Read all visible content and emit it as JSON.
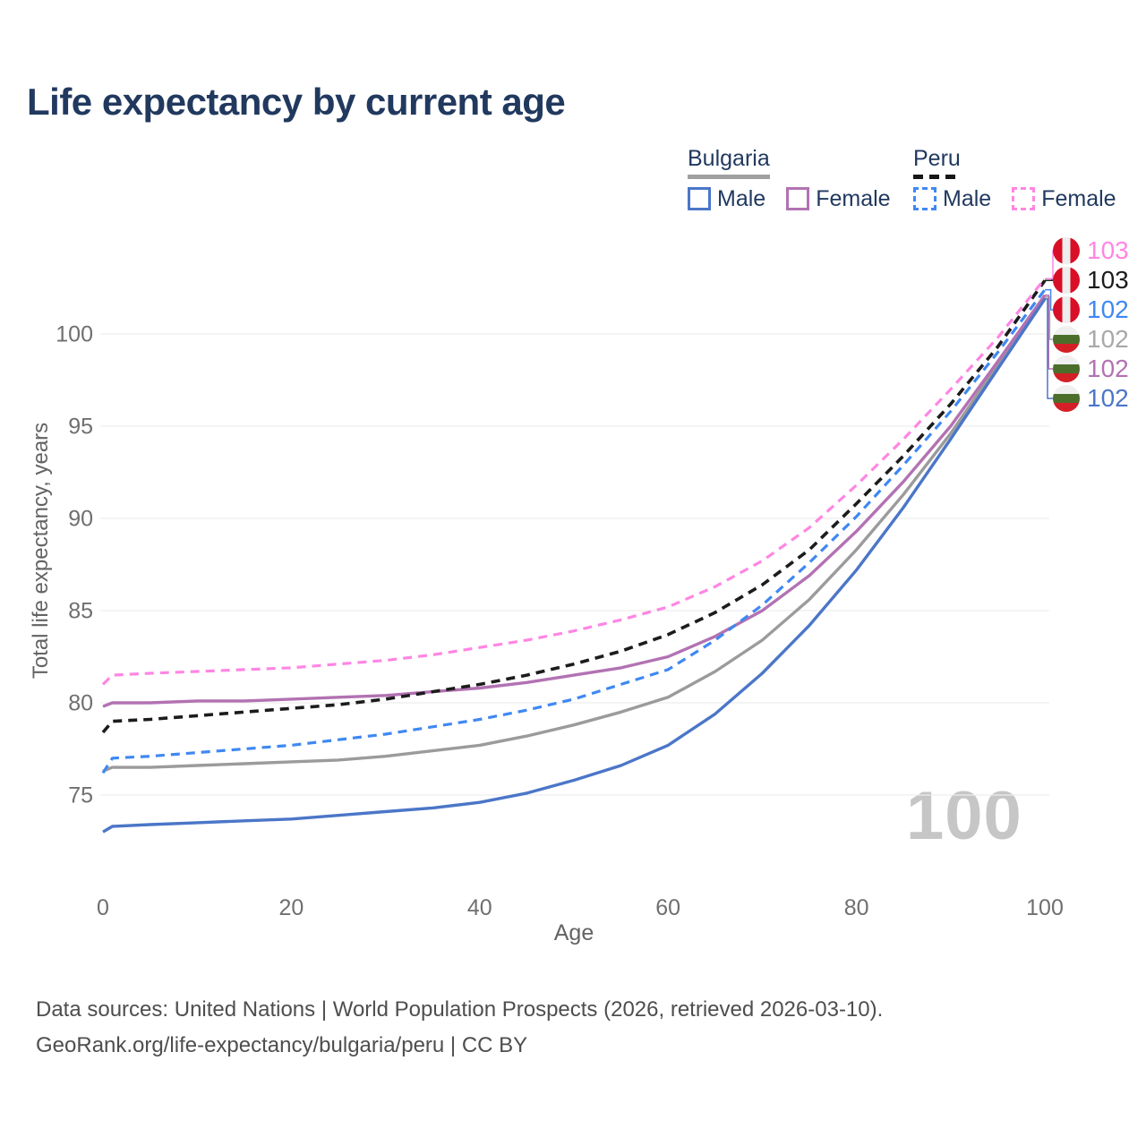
{
  "title": "Life expectancy by current age",
  "legend": {
    "groups": [
      {
        "country": "Bulgaria",
        "line_style": "solid",
        "underline_color": "#a0a0a0",
        "items": [
          {
            "label": "Male",
            "color": "#4b76c8"
          },
          {
            "label": "Female",
            "color": "#b272b2"
          }
        ]
      },
      {
        "country": "Peru",
        "line_style": "dashed",
        "underline_color": "#161616",
        "items": [
          {
            "label": "Male",
            "color": "#3f88f2"
          },
          {
            "label": "Female",
            "color": "#ff86e3"
          }
        ]
      }
    ]
  },
  "y_axis": {
    "title": "Total life expectancy, years",
    "ticks": [
      75,
      80,
      85,
      90,
      95,
      100
    ]
  },
  "x_axis": {
    "title": "Age",
    "ticks": [
      0,
      20,
      40,
      60,
      80,
      100
    ]
  },
  "watermark": "100",
  "end_labels": [
    {
      "value": "103",
      "country": "Peru",
      "series": "Peru Female",
      "color": "#ff86e3",
      "flag": "peru"
    },
    {
      "value": "103",
      "country": "Peru",
      "series": "Peru",
      "color": "#1c1c1c",
      "flag": "peru"
    },
    {
      "value": "102",
      "country": "Peru",
      "series": "Peru Male",
      "color": "#3f88f2",
      "flag": "peru"
    },
    {
      "value": "102",
      "country": "Bulgaria",
      "series": "Bulgaria",
      "color": "#a8a8a8",
      "flag": "bulgaria"
    },
    {
      "value": "102",
      "country": "Bulgaria",
      "series": "Bulgaria Female",
      "color": "#b272b2",
      "flag": "bulgaria"
    },
    {
      "value": "102",
      "country": "Bulgaria",
      "series": "Bulgaria Male",
      "color": "#4b76c8",
      "flag": "bulgaria"
    }
  ],
  "chart_data": {
    "type": "line",
    "title": "Life expectancy by current age",
    "xlabel": "Age",
    "ylabel": "Total life expectancy, years",
    "xlim": [
      0,
      100
    ],
    "ylim": [
      72,
      104
    ],
    "grid": "horizontal",
    "legend_position": "top-right",
    "x": [
      0,
      1,
      5,
      10,
      15,
      20,
      25,
      30,
      35,
      40,
      45,
      50,
      55,
      60,
      65,
      70,
      75,
      80,
      85,
      90,
      95,
      100
    ],
    "series": [
      {
        "name": "Bulgaria",
        "color": "#9b9b9b",
        "dash": false,
        "values": [
          76.3,
          76.5,
          76.5,
          76.6,
          76.7,
          76.8,
          76.9,
          77.1,
          77.4,
          77.7,
          78.2,
          78.8,
          79.5,
          80.3,
          81.7,
          83.4,
          85.6,
          88.3,
          91.3,
          94.6,
          98.3,
          102.0
        ]
      },
      {
        "name": "Bulgaria Female",
        "color": "#b272b2",
        "dash": false,
        "values": [
          79.8,
          80.0,
          80.0,
          80.1,
          80.1,
          80.2,
          80.3,
          80.4,
          80.6,
          80.8,
          81.1,
          81.5,
          81.9,
          82.5,
          83.6,
          85.0,
          86.9,
          89.3,
          92.0,
          95.0,
          98.5,
          102.1
        ]
      },
      {
        "name": "Bulgaria Male",
        "color": "#4b76c8",
        "dash": false,
        "values": [
          73.0,
          73.3,
          73.4,
          73.5,
          73.6,
          73.7,
          73.9,
          74.1,
          74.3,
          74.6,
          75.1,
          75.8,
          76.6,
          77.7,
          79.4,
          81.6,
          84.2,
          87.2,
          90.6,
          94.3,
          98.1,
          101.9
        ]
      },
      {
        "name": "Peru",
        "color": "#1c1c1c",
        "dash": true,
        "values": [
          78.4,
          79.0,
          79.1,
          79.3,
          79.5,
          79.7,
          79.9,
          80.2,
          80.6,
          81.0,
          81.5,
          82.1,
          82.8,
          83.7,
          84.9,
          86.4,
          88.3,
          90.8,
          93.4,
          96.2,
          99.3,
          102.9
        ]
      },
      {
        "name": "Peru Male",
        "color": "#3f88f2",
        "dash": true,
        "values": [
          76.2,
          77.0,
          77.1,
          77.3,
          77.5,
          77.7,
          78.0,
          78.3,
          78.7,
          79.1,
          79.6,
          80.2,
          81.0,
          81.8,
          83.4,
          85.3,
          87.6,
          90.1,
          92.9,
          95.8,
          99.0,
          102.4
        ]
      },
      {
        "name": "Peru Female",
        "color": "#ff86e3",
        "dash": true,
        "values": [
          81.0,
          81.5,
          81.6,
          81.7,
          81.8,
          81.9,
          82.1,
          82.3,
          82.6,
          83.0,
          83.4,
          83.9,
          84.5,
          85.2,
          86.3,
          87.7,
          89.5,
          91.8,
          94.3,
          97.0,
          99.8,
          103.0
        ]
      }
    ]
  },
  "footer": {
    "line1": "Data sources: United Nations | World Population Prospects (2026, retrieved 2026-03-10).",
    "line2": "GeoRank.org/life-expectancy/bulgaria/peru | CC BY"
  }
}
